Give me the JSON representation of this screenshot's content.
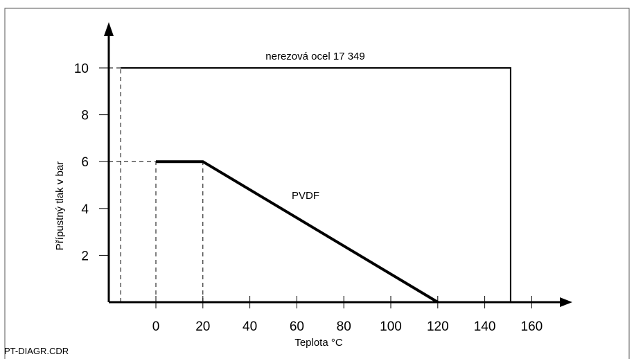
{
  "file_label": "PT-DIAGR.CDR",
  "chart_data": {
    "type": "line",
    "title": "",
    "xlabel": "Teplota °C",
    "ylabel": "Přípustný tlak v bar",
    "xlim": [
      -20,
      170
    ],
    "ylim": [
      0,
      12
    ],
    "x_ticks": [
      0,
      20,
      40,
      60,
      80,
      100,
      120,
      140,
      160
    ],
    "y_ticks": [
      2,
      4,
      6,
      8,
      10
    ],
    "grid": false,
    "colors": {
      "axis": "#000000",
      "series": "#000000",
      "border": "#555555"
    },
    "series": [
      {
        "name": "nerezová ocel 17 349",
        "x": [
          -15,
          151,
          151
        ],
        "y": [
          10,
          10,
          0
        ]
      },
      {
        "name": "PVDF",
        "x": [
          0,
          20,
          120
        ],
        "y": [
          6,
          6,
          0
        ]
      }
    ],
    "reference_lines": [
      {
        "x": [
          -15,
          -15
        ],
        "y": [
          0,
          10
        ]
      },
      {
        "x": [
          -20,
          0
        ],
        "y": [
          10,
          10
        ]
      },
      {
        "x": [
          -20,
          0
        ],
        "y": [
          6,
          6
        ]
      },
      {
        "x": [
          0,
          0
        ],
        "y": [
          0,
          6
        ]
      },
      {
        "x": [
          20,
          20
        ],
        "y": [
          0,
          6
        ]
      }
    ]
  }
}
